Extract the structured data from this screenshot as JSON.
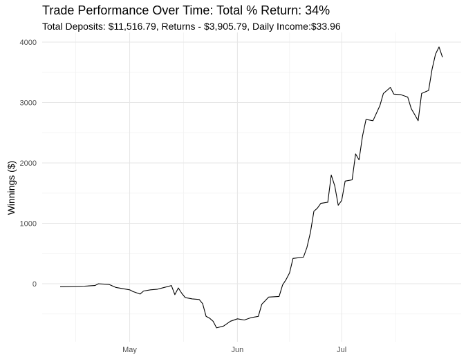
{
  "chart_data": {
    "type": "line",
    "title": "Trade Performance Over Time: Total % Return: 34%",
    "subtitle": "Total Deposits: $11,516.79, Returns - $3,905.79, Daily Income:$33.96",
    "xlabel": "",
    "ylabel": "Winnings ($)",
    "x_tick_labels": [
      {
        "date": "2024-05-01",
        "label": "May"
      },
      {
        "date": "2024-06-01",
        "label": "Jun"
      },
      {
        "date": "2024-07-01",
        "label": "Jul"
      }
    ],
    "y_ticks": [
      0,
      1000,
      2000,
      3000,
      4000
    ],
    "xlim": [
      "2024-04-11",
      "2024-07-30"
    ],
    "ylim": [
      -960,
      4160
    ],
    "grid": true,
    "legend": "none",
    "series": [
      {
        "color": "#000000",
        "points": [
          [
            "2024-04-11",
            -50
          ],
          [
            "2024-04-18",
            -40
          ],
          [
            "2024-04-21",
            -30
          ],
          [
            "2024-04-22",
            0
          ],
          [
            "2024-04-25",
            -10
          ],
          [
            "2024-04-27",
            -60
          ],
          [
            "2024-05-01",
            -100
          ],
          [
            "2024-05-02",
            -130
          ],
          [
            "2024-05-04",
            -170
          ],
          [
            "2024-05-05",
            -120
          ],
          [
            "2024-05-07",
            -100
          ],
          [
            "2024-05-09",
            -90
          ],
          [
            "2024-05-11",
            -60
          ],
          [
            "2024-05-13",
            -30
          ],
          [
            "2024-05-14",
            -180
          ],
          [
            "2024-05-15",
            -70
          ],
          [
            "2024-05-16",
            -160
          ],
          [
            "2024-05-17",
            -230
          ],
          [
            "2024-05-19",
            -250
          ],
          [
            "2024-05-21",
            -260
          ],
          [
            "2024-05-22",
            -330
          ],
          [
            "2024-05-23",
            -540
          ],
          [
            "2024-05-24",
            -570
          ],
          [
            "2024-05-25",
            -620
          ],
          [
            "2024-05-26",
            -730
          ],
          [
            "2024-05-28",
            -700
          ],
          [
            "2024-05-30",
            -620
          ],
          [
            "2024-06-01",
            -580
          ],
          [
            "2024-06-03",
            -600
          ],
          [
            "2024-06-05",
            -560
          ],
          [
            "2024-06-07",
            -540
          ],
          [
            "2024-06-08",
            -340
          ],
          [
            "2024-06-10",
            -220
          ],
          [
            "2024-06-13",
            -210
          ],
          [
            "2024-06-14",
            -20
          ],
          [
            "2024-06-15",
            70
          ],
          [
            "2024-06-16",
            180
          ],
          [
            "2024-06-17",
            420
          ],
          [
            "2024-06-20",
            440
          ],
          [
            "2024-06-21",
            600
          ],
          [
            "2024-06-22",
            850
          ],
          [
            "2024-06-23",
            1200
          ],
          [
            "2024-06-24",
            1250
          ],
          [
            "2024-06-25",
            1330
          ],
          [
            "2024-06-27",
            1350
          ],
          [
            "2024-06-28",
            1800
          ],
          [
            "2024-06-29",
            1620
          ],
          [
            "2024-06-30",
            1300
          ],
          [
            "2024-07-01",
            1380
          ],
          [
            "2024-07-02",
            1700
          ],
          [
            "2024-07-04",
            1720
          ],
          [
            "2024-07-05",
            2150
          ],
          [
            "2024-07-06",
            2050
          ],
          [
            "2024-07-07",
            2450
          ],
          [
            "2024-07-08",
            2720
          ],
          [
            "2024-07-10",
            2700
          ],
          [
            "2024-07-12",
            2950
          ],
          [
            "2024-07-13",
            3150
          ],
          [
            "2024-07-14",
            3200
          ],
          [
            "2024-07-15",
            3250
          ],
          [
            "2024-07-16",
            3140
          ],
          [
            "2024-07-18",
            3130
          ],
          [
            "2024-07-20",
            3090
          ],
          [
            "2024-07-21",
            2900
          ],
          [
            "2024-07-22",
            2800
          ],
          [
            "2024-07-23",
            2700
          ],
          [
            "2024-07-24",
            3150
          ],
          [
            "2024-07-26",
            3200
          ],
          [
            "2024-07-27",
            3550
          ],
          [
            "2024-07-28",
            3800
          ],
          [
            "2024-07-29",
            3920
          ],
          [
            "2024-07-30",
            3750
          ]
        ]
      }
    ]
  }
}
